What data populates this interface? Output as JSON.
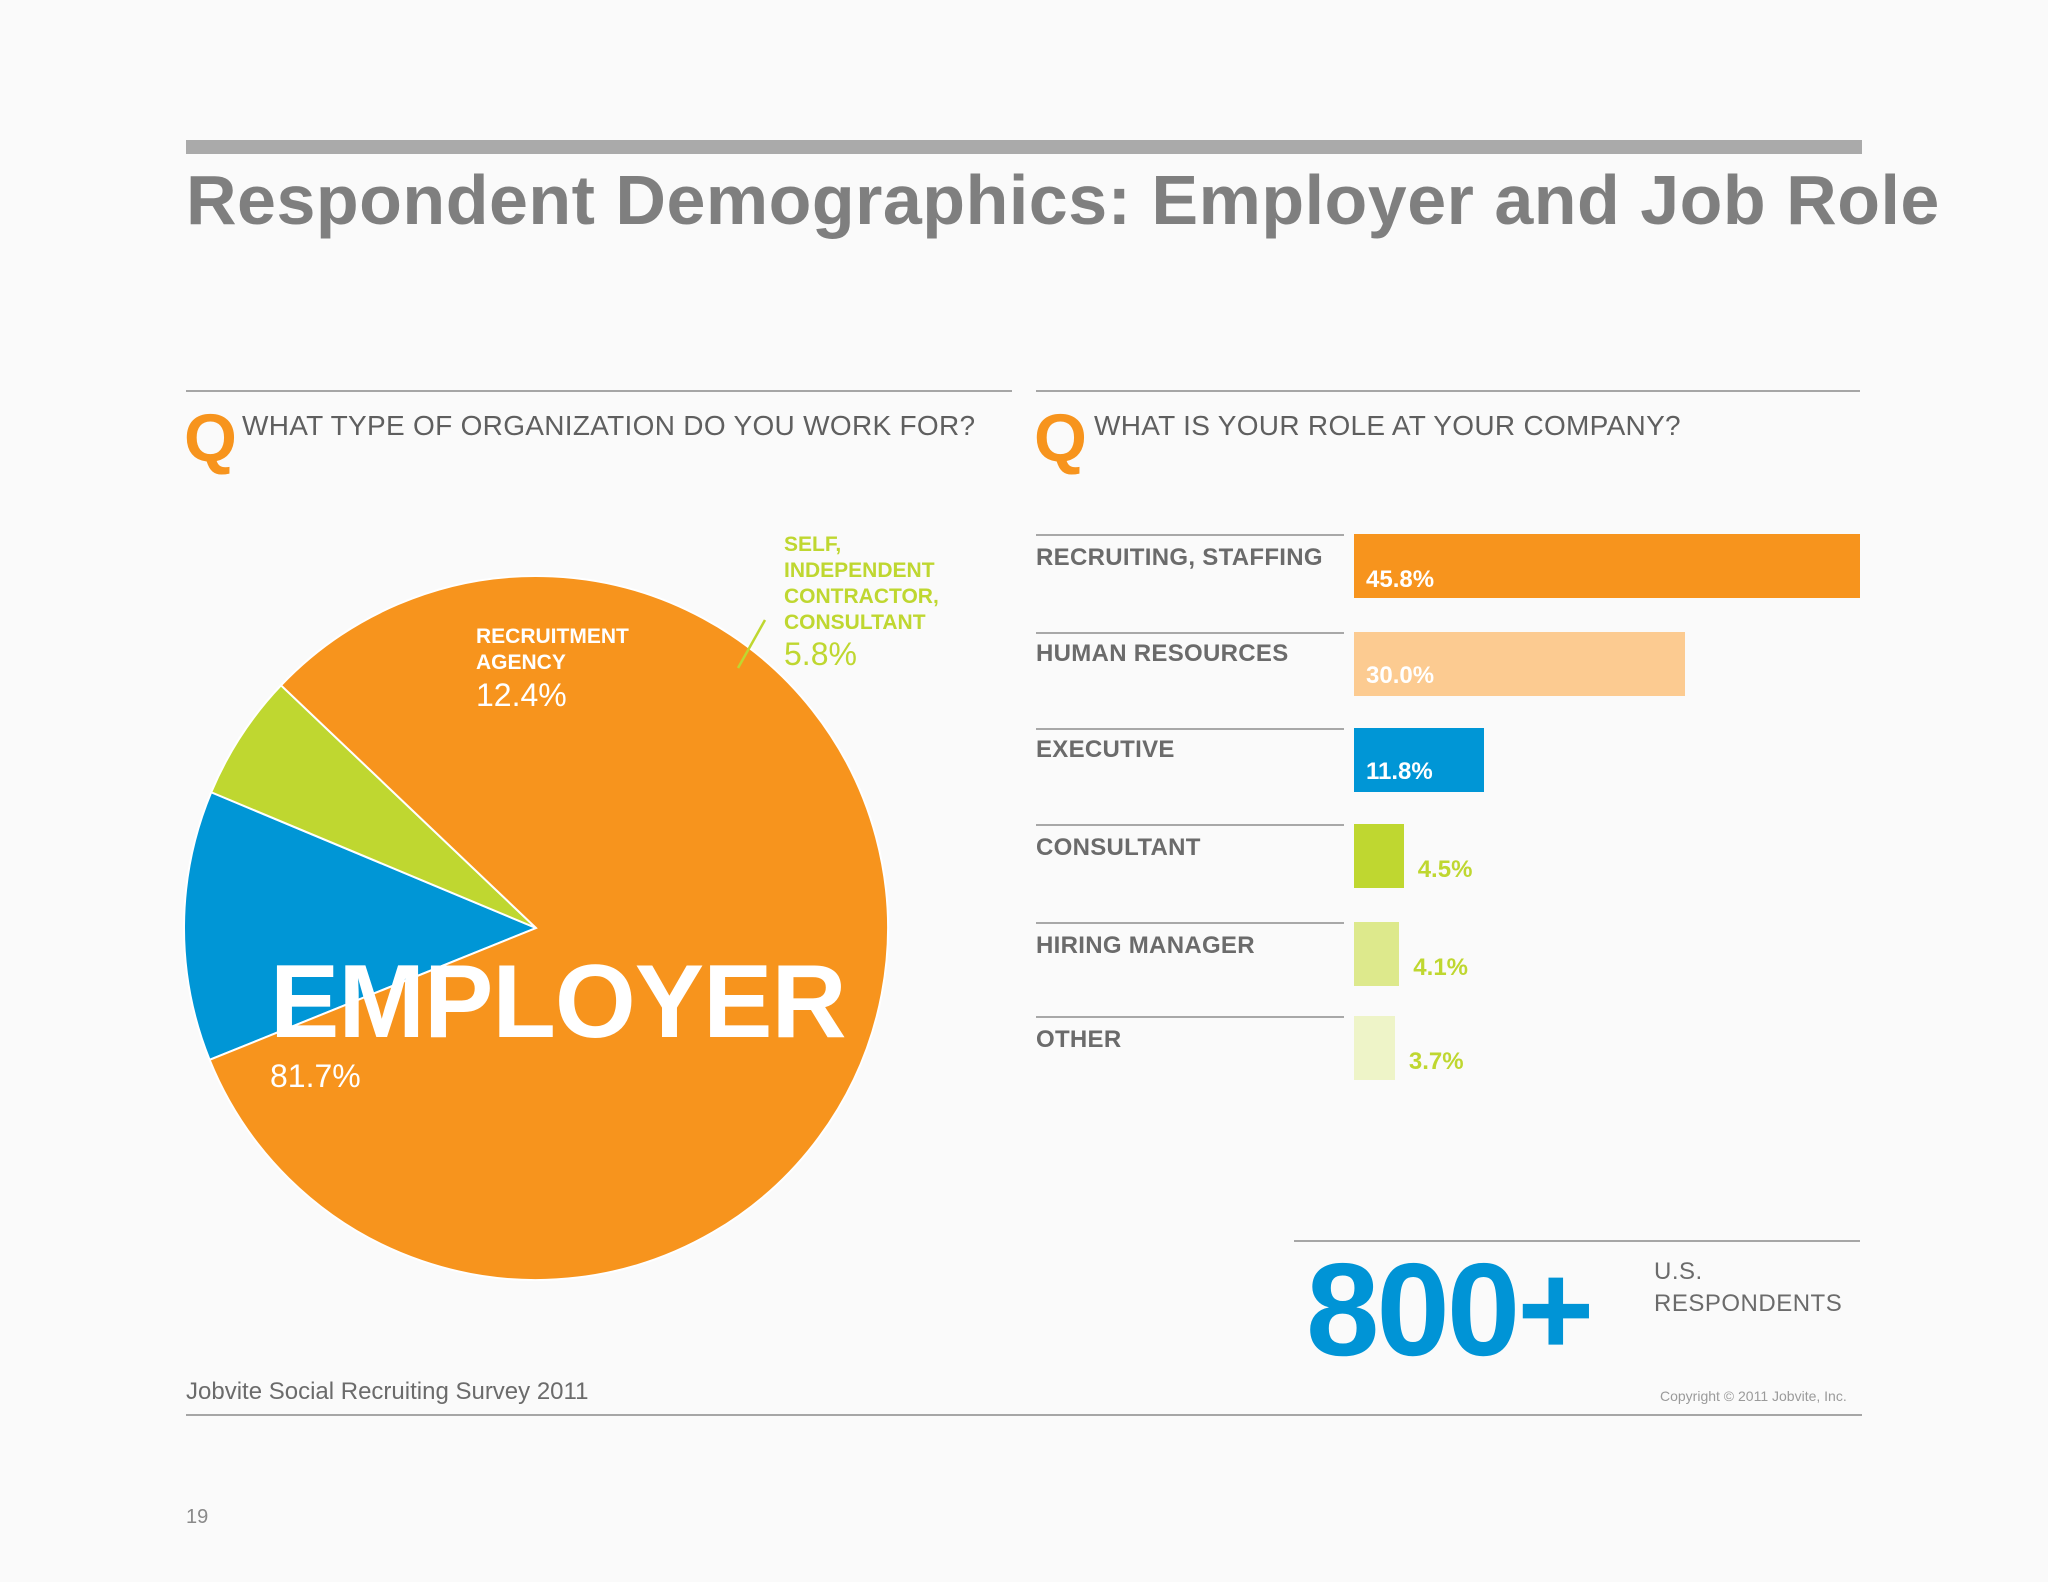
{
  "title": "Respondent Demographics: Employer and Job Role",
  "left_question": {
    "q": "Q",
    "text": "WHAT TYPE OF ORGANIZATION DO YOU WORK FOR?"
  },
  "right_question": {
    "q": "Q",
    "text": "WHAT IS YOUR ROLE AT YOUR COMPANY?"
  },
  "pie_labels": {
    "employer_name": "EMPLOYER",
    "employer_value": "81.7%",
    "agency_line1": "RECRUITMENT",
    "agency_line2": "AGENCY",
    "agency_value": "12.4%",
    "self_line1": "SELF,",
    "self_line2": "INDEPENDENT",
    "self_line3": "CONTRACTOR,",
    "self_line4": "CONSULTANT",
    "self_value": "5.8%"
  },
  "bar_labels": [
    {
      "label": "RECRUITING, STAFFING",
      "value": "45.8%"
    },
    {
      "label": "HUMAN RESOURCES",
      "value": "30.0%"
    },
    {
      "label": "EXECUTIVE",
      "value": "11.8%"
    },
    {
      "label": "CONSULTANT",
      "value": "4.5%"
    },
    {
      "label": "HIRING MANAGER",
      "value": "4.1%"
    },
    {
      "label": "OTHER",
      "value": "3.7%"
    }
  ],
  "chart_data": [
    {
      "type": "pie",
      "title": "WHAT TYPE OF ORGANIZATION DO YOU WORK FOR?",
      "categories": [
        "EMPLOYER",
        "RECRUITMENT AGENCY",
        "SELF, INDEPENDENT CONTRACTOR, CONSULTANT"
      ],
      "values": [
        81.7,
        12.4,
        5.8
      ],
      "colors": [
        "#f7941d",
        "#0096d6",
        "#bfd730"
      ]
    },
    {
      "type": "bar",
      "orientation": "horizontal",
      "title": "WHAT IS YOUR ROLE AT YOUR COMPANY?",
      "categories": [
        "RECRUITING, STAFFING",
        "HUMAN RESOURCES",
        "EXECUTIVE",
        "CONSULTANT",
        "HIRING MANAGER",
        "OTHER"
      ],
      "values": [
        45.8,
        30.0,
        11.8,
        4.5,
        4.1,
        3.7
      ],
      "colors": [
        "#f7941d",
        "#fccb91",
        "#0096d6",
        "#bfd730",
        "#dde98c",
        "#eef4c8"
      ],
      "label_colors": [
        "#ffffff",
        "#ffffff",
        "#ffffff",
        "#bfd730",
        "#bfd730",
        "#bfd730"
      ]
    }
  ],
  "stat": {
    "number": "800+",
    "line1": "U.S.",
    "line2": "RESPONDENTS"
  },
  "footer": {
    "source": "Jobvite Social Recruiting Survey 2011",
    "copyright": "Copyright © 2011 Jobvite, Inc.",
    "page": "19"
  },
  "colors": {
    "orange": "#f7941d",
    "blue": "#0096d6",
    "green": "#bfd730",
    "title_gray": "#7f7f7f"
  }
}
